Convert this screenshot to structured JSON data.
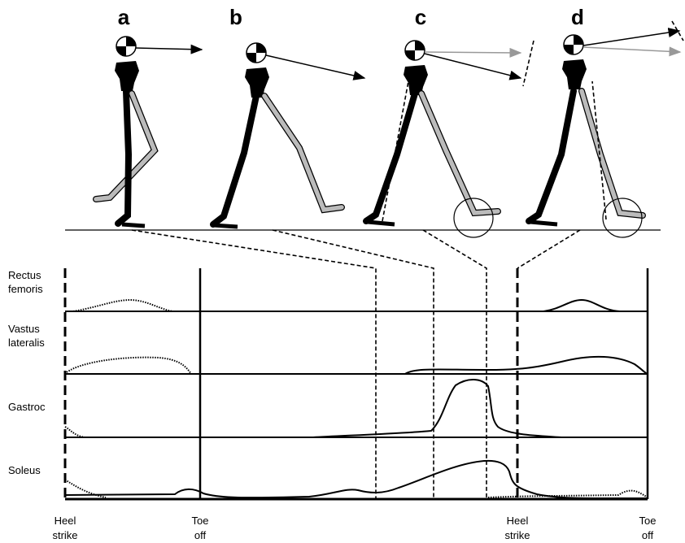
{
  "panels": [
    "a",
    "b",
    "c",
    "d"
  ],
  "muscles": [
    [
      "Rectus",
      "femoris"
    ],
    [
      "Vastus",
      "lateralis"
    ],
    [
      "Gastroc"
    ],
    [
      "Soleus"
    ]
  ],
  "events": [
    [
      "Heel",
      "strike"
    ],
    [
      "Toe",
      "off"
    ],
    [
      "Heel",
      "strike"
    ],
    [
      "Toe",
      "off"
    ]
  ]
}
